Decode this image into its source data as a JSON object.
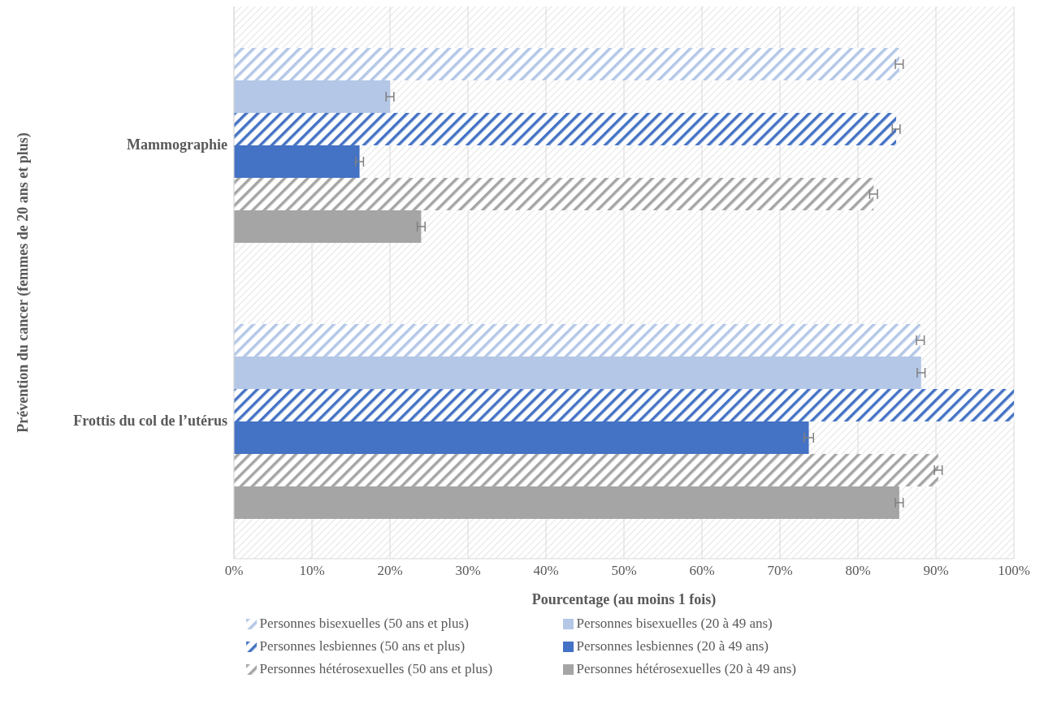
{
  "chart_data": {
    "type": "bar",
    "orientation": "horizontal",
    "ylabel": "Prévention du cancer (femmes de 20 ans et plus)",
    "xlabel": "Pourcentage (au moins 1 fois)",
    "categories": [
      "Mammographie",
      "Frottis du col de l’utérus"
    ],
    "series": [
      {
        "name": "Personnes bisexuelles (50 ans et plus)",
        "color": "#b4c7e7",
        "values": [
          85.3,
          88.0
        ],
        "errors": [
          0.5,
          0.5
        ]
      },
      {
        "name": "Personnes bisexuelles (20 à 49 ans)",
        "color": "#b4c7e7",
        "values": [
          20.0,
          88.1
        ],
        "errors": [
          0.5,
          0.5
        ]
      },
      {
        "name": "Personnes lesbiennes (50 ans et plus)",
        "color": "#4472c4",
        "values": [
          84.9,
          100
        ],
        "errors": [
          0.5,
          null
        ]
      },
      {
        "name": "Personnes lesbiennes (20 à 49 ans)",
        "color": "#4472c4",
        "values": [
          16.1,
          73.7
        ],
        "errors": [
          0.5,
          0.6
        ]
      },
      {
        "name": "Personnes hétérosexuelles (50 ans et plus)",
        "color": "#a5a5a5",
        "values": [
          82.0,
          90.3
        ],
        "errors": [
          0.5,
          0.5
        ]
      },
      {
        "name": "Personnes hétérosexuelles (20 à 49 ans)",
        "color": "#a5a5a5",
        "values": [
          24.0,
          85.3
        ],
        "errors": [
          0.5,
          0.5
        ]
      }
    ],
    "xlim": [
      0,
      100
    ],
    "xticks": [
      {
        "value": 0,
        "label": "0%"
      },
      {
        "value": 10,
        "label": "10%"
      },
      {
        "value": 20,
        "label": "20%"
      },
      {
        "value": 30,
        "label": "30%"
      },
      {
        "value": 40,
        "label": "40%"
      },
      {
        "value": 50,
        "label": "50%"
      },
      {
        "value": 60,
        "label": "60%"
      },
      {
        "value": 70,
        "label": "70%"
      },
      {
        "value": 80,
        "label": "80%"
      },
      {
        "value": 90,
        "label": "90%"
      },
      {
        "value": 100,
        "label": "100%"
      }
    ],
    "grid": "x",
    "legend": "bottom"
  }
}
